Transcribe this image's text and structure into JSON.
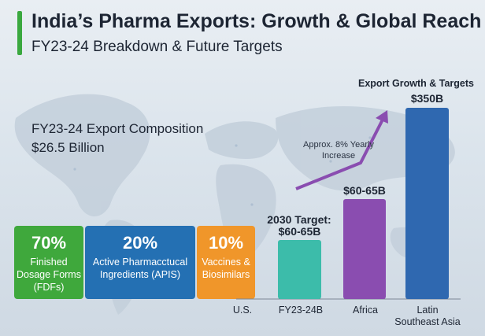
{
  "header": {
    "title": "India’s Pharma Exports: Growth & Global Reach",
    "subtitle": "FY23-24 Breakdown & Future Targets"
  },
  "composition": {
    "title": "FY23-24 Export Composition",
    "total": "$26.5 Billion",
    "segments": [
      {
        "pct": "70%",
        "label": "Finished Dosage Forms (FDFs)",
        "color": "#3fa83c"
      },
      {
        "pct": "20%",
        "label": "Active Pharmacctucal Ingredients (APIS)",
        "color": "#2470b3"
      },
      {
        "pct": "10%",
        "label": "Vaccines & Biosimilars",
        "color": "#f0962a"
      }
    ]
  },
  "chart_data": {
    "type": "bar",
    "title": "Export Growth & Targets",
    "categories": [
      "U.S.",
      "FY23-24B",
      "Africa",
      "Latin Southeast Asia"
    ],
    "values": [
      null,
      60,
      65,
      350
    ],
    "data_labels": [
      "",
      "$60-65B",
      "$60-65B",
      "$350B"
    ],
    "target_annotation": "2030 Target:",
    "trend_annotation": "Approx. 8% Yearly Increase",
    "bar_colors": [
      "#3cbcaa",
      "#8a4db0",
      "#2f68b0"
    ],
    "ylim": [
      0,
      375
    ]
  }
}
